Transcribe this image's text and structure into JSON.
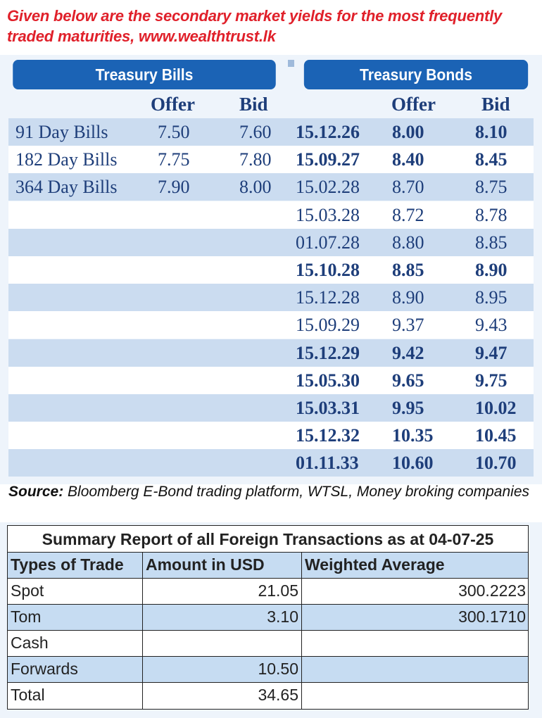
{
  "headline": {
    "line1": "Given below are the secondary market yields for the most frequently",
    "line2": "traded maturities, www.wealthtrust.lk"
  },
  "headers": {
    "bills": "Treasury Bills",
    "bonds": "Treasury Bonds"
  },
  "columns": {
    "bill_offer": "Offer",
    "bill_bid": "Bid",
    "bond_offer": "Offer",
    "bond_bid": "Bid"
  },
  "bills": [
    {
      "name": "91 Day Bills",
      "offer": "7.50",
      "bid": "7.60"
    },
    {
      "name": "182 Day Bills",
      "offer": "7.75",
      "bid": "7.80"
    },
    {
      "name": "364 Day Bills",
      "offer": "7.90",
      "bid": "8.00"
    }
  ],
  "bonds": [
    {
      "maturity": "15.12.26",
      "offer": "8.00",
      "bid": "8.10",
      "bold": true
    },
    {
      "maturity": "15.09.27",
      "offer": "8.40",
      "bid": "8.45",
      "bold": true
    },
    {
      "maturity": "15.02.28",
      "offer": "8.70",
      "bid": "8.75",
      "bold": false
    },
    {
      "maturity": "15.03.28",
      "offer": "8.72",
      "bid": "8.78",
      "bold": false
    },
    {
      "maturity": "01.07.28",
      "offer": "8.80",
      "bid": "8.85",
      "bold": false
    },
    {
      "maturity": "15.10.28",
      "offer": "8.85",
      "bid": "8.90",
      "bold": true
    },
    {
      "maturity": "15.12.28",
      "offer": "8.90",
      "bid": "8.95",
      "bold": false
    },
    {
      "maturity": "15.09.29",
      "offer": "9.37",
      "bid": "9.43",
      "bold": false
    },
    {
      "maturity": "15.12.29",
      "offer": "9.42",
      "bid": "9.47",
      "bold": true
    },
    {
      "maturity": "15.05.30",
      "offer": "9.65",
      "bid": "9.75",
      "bold": true
    },
    {
      "maturity": "15.03.31",
      "offer": "9.95",
      "bid": "10.02",
      "bold": true
    },
    {
      "maturity": "15.12.32",
      "offer": "10.35",
      "bid": "10.45",
      "bold": true
    },
    {
      "maturity": "01.11.33",
      "offer": "10.60",
      "bid": "10.70",
      "bold": true
    }
  ],
  "source": {
    "label": "Source:",
    "text": " Bloomberg E-Bond trading platform, WTSL, Money broking companies"
  },
  "fx": {
    "title": "Summary Report of all Foreign Transactions as at 04-07-25",
    "headers": [
      "Types of Trade",
      "Amount in USD",
      "Weighted Average"
    ],
    "rows": [
      {
        "type": "Spot",
        "amount": "21.05",
        "avg": "300.2223"
      },
      {
        "type": "Tom",
        "amount": "3.10",
        "avg": "300.1710"
      },
      {
        "type": "Cash",
        "amount": "",
        "avg": ""
      },
      {
        "type": "Forwards",
        "amount": "10.50",
        "avg": ""
      },
      {
        "type": "Total",
        "amount": "34.65",
        "avg": ""
      }
    ]
  },
  "colors": {
    "headline": "#e0202a",
    "header_blue": "#1b63b5",
    "row_shade": "#cbdcf0",
    "text_navy": "#1e3e7a",
    "fx_blue": "#c6dcf2"
  }
}
